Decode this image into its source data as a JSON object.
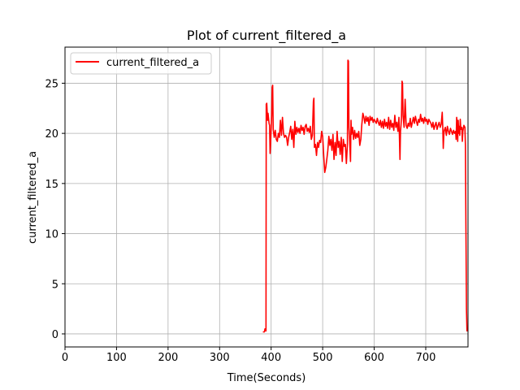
{
  "chart_data": {
    "type": "line",
    "title": "Plot of current_filtered_a",
    "xlabel": "Time(Seconds)",
    "ylabel": "current_filtered_a",
    "xlim": [
      0,
      782
    ],
    "ylim": [
      -1.3,
      28.6
    ],
    "xticks": [
      0,
      100,
      200,
      300,
      400,
      500,
      600,
      700
    ],
    "yticks": [
      0,
      5,
      10,
      15,
      20,
      25
    ],
    "grid": true,
    "legend_position": "upper-left",
    "series": [
      {
        "name": "current_filtered_a",
        "color": "#ff0000",
        "points": [
          [
            385,
            0.2
          ],
          [
            387,
            0.2
          ],
          [
            388,
            0.5
          ],
          [
            390,
            0.3
          ],
          [
            390.5,
            22.9
          ],
          [
            391.5,
            23.0
          ],
          [
            393,
            21.3
          ],
          [
            394,
            22.0
          ],
          [
            396,
            21.0
          ],
          [
            397,
            20.8
          ],
          [
            398,
            18.0
          ],
          [
            399,
            19.0
          ],
          [
            401,
            21.8
          ],
          [
            402,
            24.6
          ],
          [
            403,
            24.8
          ],
          [
            404,
            20.4
          ],
          [
            406,
            19.6
          ],
          [
            408,
            20.3
          ],
          [
            410,
            19.4
          ],
          [
            412,
            19.2
          ],
          [
            414,
            20.0
          ],
          [
            416,
            19.6
          ],
          [
            418,
            21.3
          ],
          [
            420,
            19.8
          ],
          [
            422,
            21.6
          ],
          [
            424,
            20.0
          ],
          [
            426,
            19.6
          ],
          [
            428,
            19.8
          ],
          [
            430,
            19.6
          ],
          [
            432,
            18.8
          ],
          [
            434,
            19.6
          ],
          [
            436,
            20.1
          ],
          [
            438,
            20.7
          ],
          [
            440,
            19.4
          ],
          [
            442,
            20.4
          ],
          [
            444,
            18.6
          ],
          [
            446,
            21.2
          ],
          [
            448,
            19.9
          ],
          [
            450,
            20.6
          ],
          [
            452,
            20.1
          ],
          [
            454,
            20.5
          ],
          [
            456,
            20.0
          ],
          [
            458,
            20.8
          ],
          [
            460,
            20.3
          ],
          [
            462,
            20.6
          ],
          [
            464,
            19.9
          ],
          [
            466,
            20.7
          ],
          [
            468,
            20.9
          ],
          [
            470,
            20.2
          ],
          [
            472,
            20.5
          ],
          [
            474,
            20.1
          ],
          [
            476,
            20.7
          ],
          [
            478,
            19.4
          ],
          [
            480,
            19.8
          ],
          [
            482,
            23.2
          ],
          [
            483,
            23.5
          ],
          [
            484,
            18.6
          ],
          [
            486,
            18.9
          ],
          [
            488,
            17.8
          ],
          [
            490,
            19.1
          ],
          [
            492,
            18.6
          ],
          [
            494,
            19.3
          ],
          [
            496,
            19.1
          ],
          [
            498,
            20.2
          ],
          [
            500,
            19.7
          ],
          [
            502,
            17.8
          ],
          [
            504,
            16.1
          ],
          [
            506,
            16.6
          ],
          [
            508,
            17.4
          ],
          [
            510,
            18.3
          ],
          [
            512,
            19.7
          ],
          [
            514,
            18.8
          ],
          [
            516,
            19.4
          ],
          [
            518,
            18.3
          ],
          [
            520,
            19.9
          ],
          [
            522,
            17.4
          ],
          [
            524,
            19.1
          ],
          [
            526,
            17.8
          ],
          [
            528,
            20.2
          ],
          [
            530,
            18.6
          ],
          [
            532,
            19.2
          ],
          [
            534,
            17.9
          ],
          [
            536,
            19.6
          ],
          [
            538,
            17.2
          ],
          [
            540,
            19.4
          ],
          [
            542,
            18.7
          ],
          [
            544,
            18.9
          ],
          [
            546,
            17.0
          ],
          [
            548,
            18.9
          ],
          [
            549,
            27.3
          ],
          [
            550,
            27.2
          ],
          [
            551,
            20.6
          ],
          [
            552,
            19.7
          ],
          [
            554,
            17.2
          ],
          [
            555,
            21.3
          ],
          [
            556,
            19.9
          ],
          [
            558,
            20.6
          ],
          [
            560,
            19.4
          ],
          [
            562,
            20.3
          ],
          [
            564,
            19.5
          ],
          [
            566,
            20.0
          ],
          [
            568,
            19.6
          ],
          [
            570,
            20.2
          ],
          [
            572,
            18.8
          ],
          [
            574,
            19.4
          ],
          [
            576,
            20.9
          ],
          [
            578,
            22.0
          ],
          [
            580,
            21.6
          ],
          [
            582,
            21.0
          ],
          [
            584,
            21.7
          ],
          [
            586,
            21.2
          ],
          [
            588,
            21.6
          ],
          [
            590,
            20.8
          ],
          [
            592,
            21.7
          ],
          [
            594,
            21.3
          ],
          [
            596,
            21.6
          ],
          [
            598,
            21.1
          ],
          [
            600,
            21.4
          ],
          [
            602,
            21.2
          ],
          [
            604,
            21.0
          ],
          [
            606,
            21.5
          ],
          [
            608,
            21.1
          ],
          [
            610,
            20.8
          ],
          [
            612,
            21.3
          ],
          [
            614,
            20.6
          ],
          [
            616,
            21.2
          ],
          [
            618,
            20.5
          ],
          [
            620,
            21.4
          ],
          [
            622,
            20.7
          ],
          [
            624,
            21.1
          ],
          [
            626,
            20.5
          ],
          [
            628,
            21.6
          ],
          [
            630,
            20.4
          ],
          [
            632,
            21.3
          ],
          [
            634,
            20.6
          ],
          [
            636,
            21.0
          ],
          [
            638,
            20.3
          ],
          [
            640,
            21.8
          ],
          [
            642,
            20.6
          ],
          [
            644,
            21.1
          ],
          [
            646,
            20.2
          ],
          [
            648,
            21.6
          ],
          [
            650,
            17.4
          ],
          [
            651,
            20.2
          ],
          [
            652,
            20.8
          ],
          [
            653,
            21.7
          ],
          [
            654,
            25.2
          ],
          [
            655,
            25.0
          ],
          [
            656,
            21.8
          ],
          [
            658,
            20.6
          ],
          [
            660,
            23.4
          ],
          [
            662,
            20.8
          ],
          [
            664,
            20.5
          ],
          [
            666,
            21.0
          ],
          [
            668,
            20.7
          ],
          [
            670,
            21.5
          ],
          [
            672,
            20.6
          ],
          [
            674,
            21.1
          ],
          [
            676,
            21.6
          ],
          [
            678,
            21.0
          ],
          [
            680,
            21.7
          ],
          [
            682,
            21.2
          ],
          [
            684,
            20.8
          ],
          [
            686,
            21.4
          ],
          [
            688,
            21.1
          ],
          [
            690,
            21.9
          ],
          [
            692,
            21.2
          ],
          [
            694,
            21.5
          ],
          [
            696,
            21.0
          ],
          [
            698,
            21.6
          ],
          [
            700,
            21.2
          ],
          [
            702,
            21.4
          ],
          [
            704,
            20.9
          ],
          [
            706,
            21.4
          ],
          [
            708,
            21.2
          ],
          [
            710,
            21.0
          ],
          [
            712,
            20.6
          ],
          [
            714,
            21.1
          ],
          [
            716,
            20.4
          ],
          [
            718,
            20.8
          ],
          [
            720,
            21.1
          ],
          [
            722,
            20.4
          ],
          [
            724,
            20.8
          ],
          [
            726,
            21.1
          ],
          [
            728,
            20.6
          ],
          [
            730,
            20.9
          ],
          [
            732,
            22.1
          ],
          [
            733,
            20.7
          ],
          [
            734,
            18.5
          ],
          [
            735,
            19.8
          ],
          [
            736,
            20.3
          ],
          [
            738,
            20.6
          ],
          [
            740,
            19.8
          ],
          [
            742,
            20.7
          ],
          [
            744,
            20.2
          ],
          [
            746,
            19.9
          ],
          [
            748,
            20.5
          ],
          [
            750,
            20.2
          ],
          [
            752,
            19.9
          ],
          [
            754,
            20.3
          ],
          [
            756,
            20.0
          ],
          [
            758,
            20.2
          ],
          [
            759,
            19.4
          ],
          [
            760,
            21.6
          ],
          [
            761,
            21.0
          ],
          [
            762,
            19.2
          ],
          [
            763,
            21.3
          ],
          [
            764,
            20.0
          ],
          [
            765,
            20.7
          ],
          [
            766,
            19.8
          ],
          [
            767,
            21.4
          ],
          [
            768,
            20.4
          ],
          [
            770,
            20.6
          ],
          [
            771,
            19.2
          ],
          [
            772,
            20.2
          ],
          [
            774,
            20.8
          ],
          [
            776,
            20.6
          ],
          [
            777,
            18.8
          ],
          [
            778,
            10.5
          ],
          [
            779,
            2.5
          ],
          [
            780,
            0.3
          ]
        ]
      }
    ]
  }
}
